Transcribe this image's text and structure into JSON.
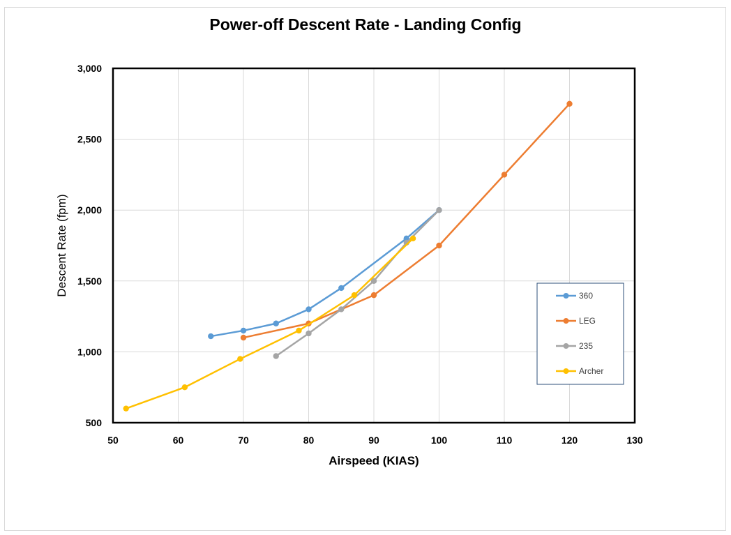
{
  "chart_data": {
    "type": "line",
    "title": "Power-off Descent Rate - Landing Config",
    "xlabel": "Airspeed (KIAS)",
    "ylabel": "Descent Rate (fpm)",
    "xlim": [
      50,
      130
    ],
    "ylim": [
      500,
      3000
    ],
    "x_ticks": [
      "50",
      "60",
      "70",
      "80",
      "90",
      "100",
      "110",
      "120",
      "130"
    ],
    "y_ticks": [
      "500",
      "1,000",
      "1,500",
      "2,000",
      "2,500",
      "3,000"
    ],
    "grid": true,
    "legend_position": "right",
    "series": [
      {
        "name": "360",
        "color": "#5b9bd5",
        "x": [
          65,
          70,
          75,
          80,
          85,
          95,
          100
        ],
        "y": [
          1110,
          1150,
          1200,
          1300,
          1450,
          1800,
          2000
        ]
      },
      {
        "name": "LEG",
        "color": "#ed7d31",
        "x": [
          70,
          80,
          90,
          100,
          110,
          120
        ],
        "y": [
          1100,
          1200,
          1400,
          1750,
          2250,
          2750
        ]
      },
      {
        "name": "235",
        "color": "#a5a5a5",
        "x": [
          75,
          80,
          85,
          90,
          95,
          100
        ],
        "y": [
          970,
          1130,
          1300,
          1500,
          1770,
          2000
        ]
      },
      {
        "name": "Archer",
        "color": "#ffc000",
        "x": [
          52,
          61,
          69.5,
          78.5,
          87,
          96
        ],
        "y": [
          600,
          750,
          950,
          1150,
          1400,
          1800
        ]
      }
    ]
  }
}
